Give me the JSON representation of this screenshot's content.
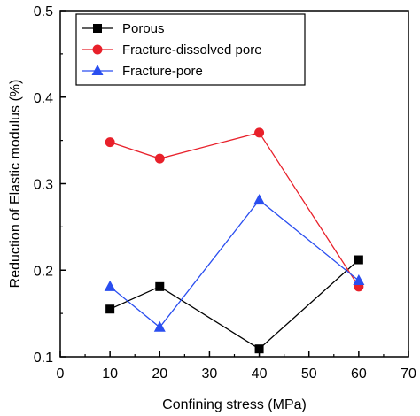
{
  "chart_data": {
    "type": "line",
    "xlabel": "Confining stress (MPa)",
    "ylabel": "Reduction of Elastic modulus (%)",
    "xlim": [
      0,
      70
    ],
    "ylim": [
      0.1,
      0.5
    ],
    "xticks": [
      "0",
      "10",
      "20",
      "30",
      "40",
      "50",
      "60",
      "70"
    ],
    "yticks": [
      "0.1",
      "0.2",
      "0.3",
      "0.4",
      "0.5"
    ],
    "grid": false,
    "legend_position": "top-left",
    "x": [
      10,
      20,
      40,
      60
    ],
    "series": [
      {
        "name": "Porous",
        "values": [
          0.155,
          0.181,
          0.109,
          0.212
        ],
        "color": "#000000",
        "marker": "square"
      },
      {
        "name": "Fracture-dissolved pore",
        "values": [
          0.348,
          0.329,
          0.359,
          0.181
        ],
        "color": "#e8202a",
        "marker": "circle"
      },
      {
        "name": "Fracture-pore",
        "values": [
          0.181,
          0.134,
          0.281,
          0.188
        ],
        "color": "#2a4ef0",
        "marker": "triangle"
      }
    ]
  }
}
